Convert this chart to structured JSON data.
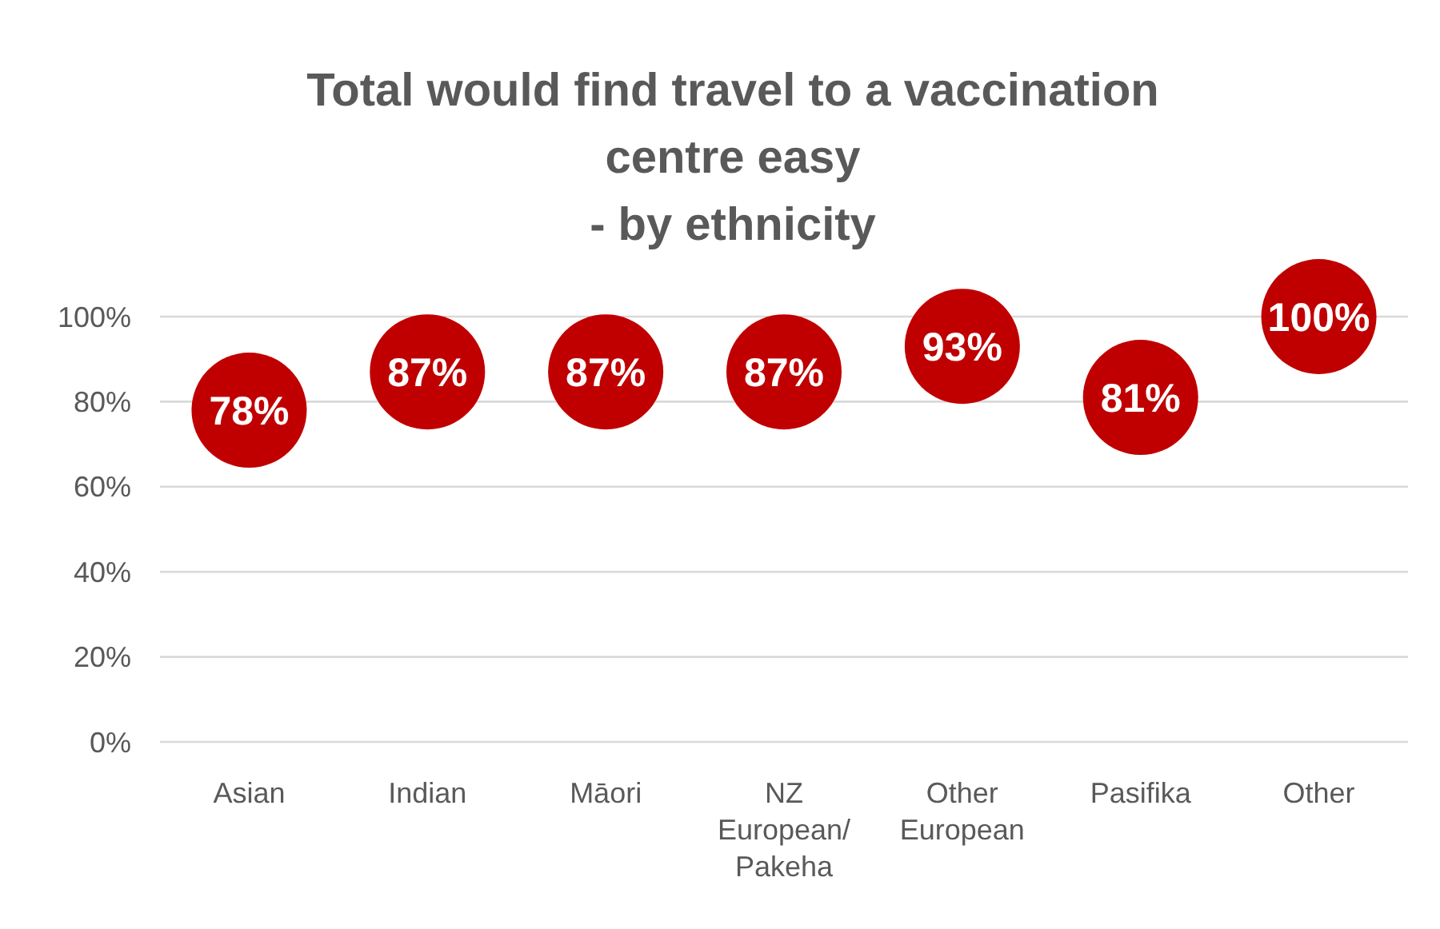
{
  "chart_data": {
    "type": "scatter",
    "title": "Total would find travel to a vaccination\ncentre easy\n- by ethnicity",
    "categories": [
      "Asian",
      "Indian",
      "Māori",
      "NZ European/ Pakeha",
      "Other European",
      "Pasifika",
      "Other"
    ],
    "series": [
      {
        "color": "#c00000",
        "values": [
          78,
          87,
          87,
          87,
          93,
          81,
          100
        ],
        "value_labels": [
          "78%",
          "87%",
          "87%",
          "87%",
          "93%",
          "81%",
          "100%"
        ]
      }
    ],
    "ylim": [
      0,
      100
    ],
    "yticks": [
      {
        "value": 0,
        "label": "0%"
      },
      {
        "value": 20,
        "label": "20%"
      },
      {
        "value": 40,
        "label": "40%"
      },
      {
        "value": 60,
        "label": "60%"
      },
      {
        "value": 80,
        "label": "80%"
      },
      {
        "value": 100,
        "label": "100%"
      }
    ],
    "grid": "y",
    "marker": "circle"
  }
}
